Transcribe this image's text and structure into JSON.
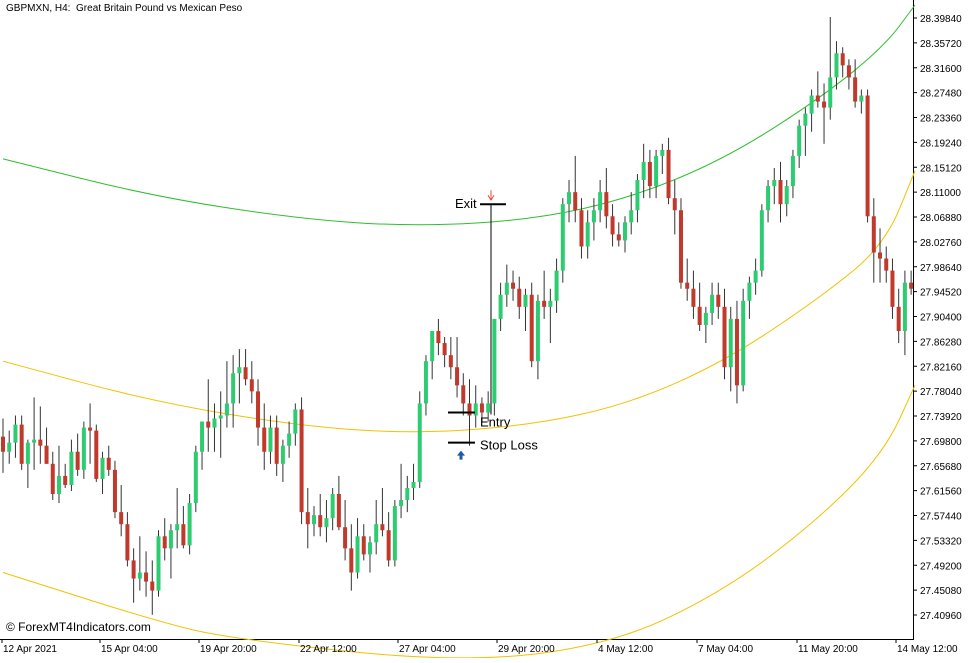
{
  "header": {
    "symbol": "GBPMXN, H4:",
    "description": "Great Britain Pound vs Mexican Peso"
  },
  "watermark": "© ForexMT4Indicators.com",
  "annotations": {
    "exit_label": "Exit",
    "entry_label": "Entry",
    "stop_loss_label": "Stop Loss"
  },
  "colors": {
    "bull": "#2ecc71",
    "bear": "#c0392b",
    "upper_channel": "#2fbf2f",
    "mid_channel": "#f2c200",
    "lower_channel": "#f2c200",
    "buy_arrow": "#1e5aa8",
    "exit_arrow": "#e74c3c"
  },
  "chart_data": {
    "type": "candlestick",
    "y_ticks": [
      "28.39840",
      "28.35720",
      "28.31600",
      "28.27480",
      "28.23360",
      "28.19240",
      "28.15120",
      "28.11000",
      "28.06880",
      "28.02760",
      "27.98640",
      "27.94520",
      "27.90400",
      "27.86280",
      "27.82160",
      "27.78040",
      "27.73920",
      "27.69800",
      "27.65680",
      "27.61560",
      "27.57440",
      "27.53320",
      "27.49200",
      "27.45080",
      "27.40960"
    ],
    "x_ticks": [
      "12 Apr 2021",
      "15 Apr 04:00",
      "19 Apr 20:00",
      "22 Apr 12:00",
      "27 Apr 04:00",
      "29 Apr 20:00",
      "4 May 12:00",
      "7 May 04:00",
      "11 May 20:00",
      "14 May 12:00"
    ],
    "ylim": [
      27.385,
      28.415
    ],
    "candles": [
      [
        27.705,
        27.735,
        27.645,
        27.68
      ],
      [
        27.68,
        27.715,
        27.66,
        27.695
      ],
      [
        27.695,
        27.74,
        27.67,
        27.725
      ],
      [
        27.725,
        27.74,
        27.65,
        27.66
      ],
      [
        27.66,
        27.7,
        27.62,
        27.695
      ],
      [
        27.695,
        27.77,
        27.65,
        27.7
      ],
      [
        27.7,
        27.755,
        27.66,
        27.69
      ],
      [
        27.69,
        27.72,
        27.66,
        27.66
      ],
      [
        27.66,
        27.68,
        27.6,
        27.61
      ],
      [
        27.61,
        27.69,
        27.595,
        27.64
      ],
      [
        27.64,
        27.66,
        27.62,
        27.625
      ],
      [
        27.625,
        27.7,
        27.615,
        27.68
      ],
      [
        27.68,
        27.71,
        27.64,
        27.65
      ],
      [
        27.65,
        27.73,
        27.635,
        27.72
      ],
      [
        27.72,
        27.76,
        27.66,
        27.715
      ],
      [
        27.715,
        27.725,
        27.63,
        27.635
      ],
      [
        27.635,
        27.68,
        27.61,
        27.67
      ],
      [
        27.67,
        27.69,
        27.64,
        27.65
      ],
      [
        27.65,
        27.665,
        27.57,
        27.58
      ],
      [
        27.58,
        27.625,
        27.54,
        27.56
      ],
      [
        27.56,
        27.58,
        27.49,
        27.5
      ],
      [
        27.5,
        27.52,
        27.43,
        27.47
      ],
      [
        27.47,
        27.54,
        27.45,
        27.48
      ],
      [
        27.48,
        27.515,
        27.44,
        27.465
      ],
      [
        27.465,
        27.5,
        27.41,
        27.45
      ],
      [
        27.45,
        27.55,
        27.44,
        27.54
      ],
      [
        27.54,
        27.57,
        27.5,
        27.52
      ],
      [
        27.52,
        27.56,
        27.47,
        27.55
      ],
      [
        27.55,
        27.62,
        27.52,
        27.56
      ],
      [
        27.56,
        27.59,
        27.52,
        27.525
      ],
      [
        27.525,
        27.61,
        27.51,
        27.595
      ],
      [
        27.595,
        27.69,
        27.58,
        27.68
      ],
      [
        27.68,
        27.73,
        27.65,
        27.73
      ],
      [
        27.73,
        27.8,
        27.68,
        27.72
      ],
      [
        27.72,
        27.76,
        27.68,
        27.735
      ],
      [
        27.735,
        27.78,
        27.67,
        27.74
      ],
      [
        27.74,
        27.83,
        27.72,
        27.76
      ],
      [
        27.76,
        27.84,
        27.72,
        27.81
      ],
      [
        27.81,
        27.85,
        27.76,
        27.82
      ],
      [
        27.82,
        27.85,
        27.79,
        27.8
      ],
      [
        27.8,
        27.83,
        27.76,
        27.78
      ],
      [
        27.78,
        27.8,
        27.69,
        27.72
      ],
      [
        27.72,
        27.76,
        27.65,
        27.68
      ],
      [
        27.68,
        27.74,
        27.66,
        27.72
      ],
      [
        27.72,
        27.74,
        27.64,
        27.66
      ],
      [
        27.66,
        27.7,
        27.63,
        27.69
      ],
      [
        27.69,
        27.73,
        27.67,
        27.71
      ],
      [
        27.71,
        27.76,
        27.69,
        27.75
      ],
      [
        27.75,
        27.77,
        27.56,
        27.58
      ],
      [
        27.58,
        27.62,
        27.52,
        27.56
      ],
      [
        27.56,
        27.59,
        27.54,
        27.575
      ],
      [
        27.575,
        27.61,
        27.54,
        27.555
      ],
      [
        27.555,
        27.6,
        27.53,
        27.57
      ],
      [
        27.57,
        27.62,
        27.55,
        27.61
      ],
      [
        27.61,
        27.64,
        27.55,
        27.555
      ],
      [
        27.555,
        27.6,
        27.5,
        27.52
      ],
      [
        27.52,
        27.56,
        27.45,
        27.48
      ],
      [
        27.48,
        27.57,
        27.47,
        27.54
      ],
      [
        27.54,
        27.56,
        27.5,
        27.51
      ],
      [
        27.51,
        27.54,
        27.48,
        27.53
      ],
      [
        27.53,
        27.6,
        27.51,
        27.56
      ],
      [
        27.56,
        27.62,
        27.54,
        27.55
      ],
      [
        27.55,
        27.58,
        27.49,
        27.5
      ],
      [
        27.5,
        27.6,
        27.49,
        27.59
      ],
      [
        27.59,
        27.66,
        27.57,
        27.6
      ],
      [
        27.6,
        27.64,
        27.58,
        27.62
      ],
      [
        27.62,
        27.66,
        27.6,
        27.63
      ],
      [
        27.63,
        27.78,
        27.62,
        27.76
      ],
      [
        27.76,
        27.84,
        27.74,
        27.83
      ],
      [
        27.83,
        27.88,
        27.8,
        27.88
      ],
      [
        27.88,
        27.9,
        27.84,
        27.86
      ],
      [
        27.86,
        27.87,
        27.82,
        27.84
      ],
      [
        27.84,
        27.87,
        27.8,
        27.82
      ],
      [
        27.82,
        27.87,
        27.77,
        27.79
      ],
      [
        27.79,
        27.81,
        27.74,
        27.76
      ],
      [
        27.76,
        27.8,
        27.69,
        27.74
      ],
      [
        27.74,
        27.79,
        27.72,
        27.76
      ],
      [
        27.76,
        27.77,
        27.73,
        27.745
      ],
      [
        27.745,
        27.78,
        27.73,
        27.76
      ],
      [
        27.76,
        27.9,
        27.74,
        27.9
      ],
      [
        27.9,
        27.96,
        27.88,
        27.94
      ],
      [
        27.94,
        27.99,
        27.92,
        27.96
      ],
      [
        27.96,
        27.98,
        27.93,
        27.95
      ],
      [
        27.95,
        27.97,
        27.9,
        27.92
      ],
      [
        27.92,
        27.95,
        27.88,
        27.94
      ],
      [
        27.94,
        27.96,
        27.82,
        27.83
      ],
      [
        27.83,
        27.94,
        27.8,
        27.93
      ],
      [
        27.93,
        27.98,
        27.9,
        27.92
      ],
      [
        27.92,
        27.95,
        27.86,
        27.93
      ],
      [
        27.93,
        28.0,
        27.91,
        27.98
      ],
      [
        27.98,
        28.1,
        27.96,
        28.09
      ],
      [
        28.09,
        28.13,
        28.06,
        28.11
      ],
      [
        28.11,
        28.17,
        28.06,
        28.08
      ],
      [
        28.08,
        28.1,
        28.0,
        28.02
      ],
      [
        28.02,
        28.08,
        28.0,
        28.06
      ],
      [
        28.06,
        28.1,
        28.03,
        28.08
      ],
      [
        28.08,
        28.13,
        28.06,
        28.11
      ],
      [
        28.11,
        28.15,
        28.05,
        28.07
      ],
      [
        28.07,
        28.09,
        28.02,
        28.04
      ],
      [
        28.04,
        28.06,
        28.02,
        28.03
      ],
      [
        28.03,
        28.07,
        28.01,
        28.06
      ],
      [
        28.06,
        28.11,
        28.04,
        28.08
      ],
      [
        28.08,
        28.14,
        28.06,
        28.13
      ],
      [
        28.13,
        28.19,
        28.1,
        28.16
      ],
      [
        28.16,
        28.18,
        28.1,
        28.12
      ],
      [
        28.12,
        28.18,
        28.1,
        28.17
      ],
      [
        28.17,
        28.19,
        28.14,
        28.18
      ],
      [
        28.18,
        28.2,
        28.09,
        28.1
      ],
      [
        28.1,
        28.13,
        28.04,
        28.08
      ],
      [
        28.08,
        28.1,
        27.95,
        27.96
      ],
      [
        27.96,
        28.0,
        27.93,
        27.95
      ],
      [
        27.95,
        27.98,
        27.9,
        27.92
      ],
      [
        27.92,
        27.96,
        27.88,
        27.89
      ],
      [
        27.89,
        27.92,
        27.86,
        27.91
      ],
      [
        27.91,
        27.96,
        27.89,
        27.94
      ],
      [
        27.94,
        27.96,
        27.9,
        27.92
      ],
      [
        27.92,
        27.95,
        27.8,
        27.82
      ],
      [
        27.82,
        27.92,
        27.78,
        27.9
      ],
      [
        27.9,
        27.93,
        27.76,
        27.79
      ],
      [
        27.79,
        27.95,
        27.78,
        27.93
      ],
      [
        27.93,
        27.97,
        27.9,
        27.96
      ],
      [
        27.96,
        28.0,
        27.94,
        27.98
      ],
      [
        27.98,
        28.09,
        27.97,
        28.08
      ],
      [
        28.08,
        28.13,
        28.06,
        28.12
      ],
      [
        28.12,
        28.15,
        28.09,
        28.13
      ],
      [
        28.13,
        28.16,
        28.06,
        28.09
      ],
      [
        28.09,
        28.13,
        28.07,
        28.12
      ],
      [
        28.12,
        28.18,
        28.1,
        28.17
      ],
      [
        28.17,
        28.23,
        28.15,
        28.22
      ],
      [
        28.22,
        28.25,
        28.17,
        28.24
      ],
      [
        28.24,
        28.28,
        28.21,
        28.27
      ],
      [
        28.27,
        28.31,
        28.25,
        28.26
      ],
      [
        28.26,
        28.29,
        28.19,
        28.25
      ],
      [
        28.25,
        28.4,
        28.23,
        28.3
      ],
      [
        28.3,
        28.36,
        28.28,
        28.34
      ],
      [
        28.34,
        28.35,
        28.3,
        28.32
      ],
      [
        28.32,
        28.33,
        28.28,
        28.3
      ],
      [
        28.3,
        28.33,
        28.25,
        28.26
      ],
      [
        28.26,
        28.28,
        28.24,
        28.27
      ],
      [
        28.27,
        28.28,
        28.06,
        28.07
      ],
      [
        28.07,
        28.1,
        27.96,
        28.01
      ],
      [
        28.01,
        28.05,
        27.96,
        28.0
      ],
      [
        28.0,
        28.02,
        27.96,
        27.98
      ],
      [
        27.98,
        28.0,
        27.9,
        27.92
      ],
      [
        27.92,
        27.95,
        27.86,
        27.88
      ],
      [
        27.88,
        27.98,
        27.84,
        27.96
      ],
      [
        27.96,
        27.98,
        27.94,
        27.95
      ],
      [
        27.95,
        28.08,
        27.93,
        28.06
      ]
    ],
    "channels": [
      {
        "name": "upper",
        "points": [
          [
            0,
            28.165
          ],
          [
            40,
            28.102
          ],
          [
            80,
            28.064
          ],
          [
            110,
            28.053
          ],
          [
            140,
            28.065
          ],
          [
            165,
            28.1
          ],
          [
            190,
            28.165
          ],
          [
            215,
            28.265
          ],
          [
            232,
            28.352
          ],
          [
            240,
            28.42
          ]
        ]
      },
      {
        "name": "middle",
        "points": [
          [
            0,
            27.83
          ],
          [
            40,
            27.762
          ],
          [
            80,
            27.721
          ],
          [
            110,
            27.71
          ],
          [
            140,
            27.725
          ],
          [
            165,
            27.76
          ],
          [
            190,
            27.83
          ],
          [
            215,
            27.935
          ],
          [
            232,
            28.022
          ],
          [
            240,
            28.145
          ]
        ]
      },
      {
        "name": "lower",
        "points": [
          [
            0,
            27.48
          ],
          [
            40,
            27.4
          ],
          [
            60,
            27.37
          ],
          [
            120,
            27.33
          ],
          [
            160,
            27.36
          ],
          [
            190,
            27.45
          ],
          [
            215,
            27.57
          ],
          [
            232,
            27.68
          ],
          [
            240,
            27.79
          ]
        ]
      }
    ],
    "signals": {
      "entry_price": 27.745,
      "stop_loss_price": 27.695,
      "exit_price": 28.09
    }
  }
}
